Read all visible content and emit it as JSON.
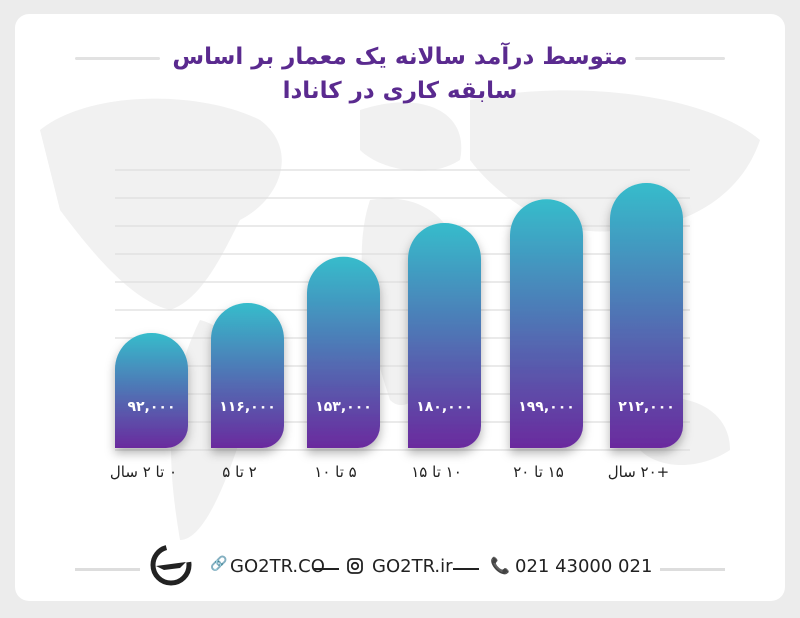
{
  "title_line1": "متوسط درآمد سالانه یک معمار بر اساس",
  "title_line2": "سابقه کاری در کانادا",
  "chart_data": {
    "type": "bar",
    "title": "متوسط درآمد سالانه یک معمار بر اساس سابقه کاری در کانادا",
    "categories": [
      "۰ تا ۲ سال",
      "۲ تا ۵",
      "۵ تا ۱۰",
      "۱۰ تا ۱۵",
      "۱۵ تا ۲۰",
      "+۲۰ سال"
    ],
    "values": [
      92000,
      116000,
      153000,
      180000,
      199000,
      212000
    ],
    "value_labels": [
      "۹۲,۰۰۰",
      "۱۱۶,۰۰۰",
      "۱۵۳,۰۰۰",
      "۱۸۰,۰۰۰",
      "۱۹۹,۰۰۰",
      "۲۱۲,۰۰۰"
    ],
    "grid": true,
    "colors": {
      "top": "#36bccb",
      "bottom": "#6a2a9e",
      "title": "#5a2a8f"
    }
  },
  "footer": {
    "website": "GO2TR.CO",
    "instagram": "GO2TR.ir",
    "phone": "021 43000 021",
    "icons": [
      "logo-plane-icon",
      "link-icon",
      "instagram-icon",
      "phone-icon"
    ]
  }
}
